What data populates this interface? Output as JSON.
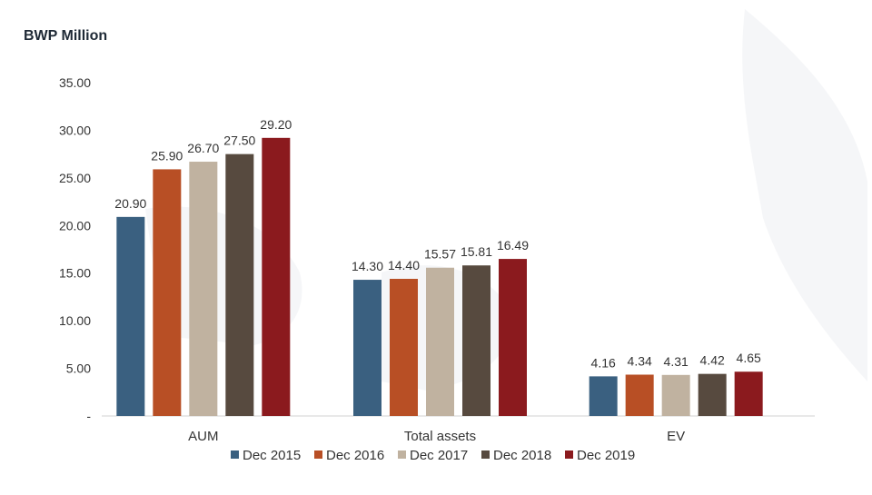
{
  "chart_data": {
    "type": "bar",
    "title": "BWP Million",
    "xlabel": "",
    "ylabel": "",
    "ylim": [
      0,
      35
    ],
    "yticks": [
      {
        "value": 0,
        "label": "-"
      },
      {
        "value": 5,
        "label": "5.00"
      },
      {
        "value": 10,
        "label": "10.00"
      },
      {
        "value": 15,
        "label": "15.00"
      },
      {
        "value": 20,
        "label": "20.00"
      },
      {
        "value": 25,
        "label": "25.00"
      },
      {
        "value": 30,
        "label": "30.00"
      },
      {
        "value": 35,
        "label": "35.00"
      }
    ],
    "categories": [
      "AUM",
      "Total assets",
      "EV"
    ],
    "series": [
      {
        "name": "Dec 2015",
        "color": "#3a6080",
        "values": [
          20.9,
          14.3,
          4.16
        ],
        "labels": [
          "20.90",
          "14.30",
          "4.16"
        ]
      },
      {
        "name": "Dec 2016",
        "color": "#b84f25",
        "values": [
          25.9,
          14.4,
          4.34
        ],
        "labels": [
          "25.90",
          "14.40",
          "4.34"
        ]
      },
      {
        "name": "Dec 2017",
        "color": "#c0b2a0",
        "values": [
          26.7,
          15.57,
          4.31
        ],
        "labels": [
          "26.70",
          "15.57",
          "4.31"
        ]
      },
      {
        "name": "Dec 2018",
        "color": "#574a3f",
        "values": [
          27.5,
          15.81,
          4.42
        ],
        "labels": [
          "27.50",
          "15.81",
          "4.42"
        ]
      },
      {
        "name": "Dec 2019",
        "color": "#8b1a1e",
        "values": [
          29.2,
          16.49,
          4.65
        ],
        "labels": [
          "29.20",
          "16.49",
          "4.65"
        ]
      }
    ],
    "grid": false,
    "legend": "bottom"
  }
}
